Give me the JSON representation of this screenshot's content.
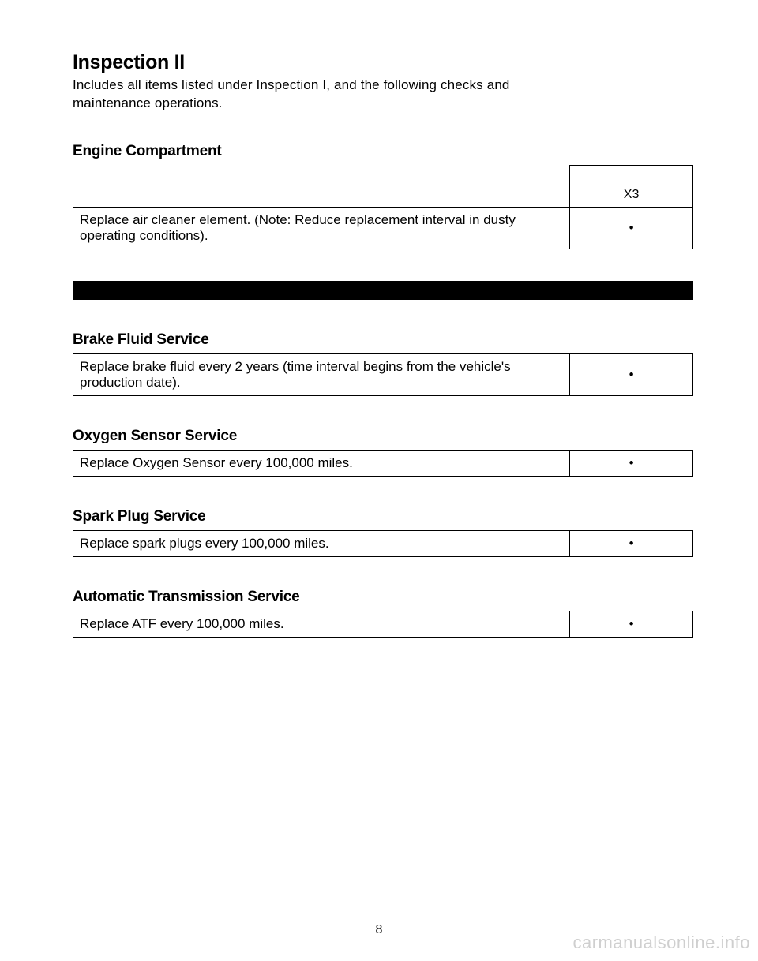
{
  "title": "Inspection II",
  "intro": "Includes all items listed under Inspection I, and the following checks and maintenance operations.",
  "column_header": "X3",
  "sections": {
    "engine": {
      "heading": "Engine Compartment",
      "item": "Replace air cleaner element. (Note: Reduce replacement interval in dusty operating conditions).",
      "mark": "•"
    },
    "brake": {
      "heading": "Brake Fluid Service",
      "item": "Replace brake fluid every 2 years (time interval begins from the vehicle's production date).",
      "mark": "•"
    },
    "oxygen": {
      "heading": "Oxygen Sensor Service",
      "item": "Replace Oxygen Sensor every 100,000 miles.",
      "mark": "•"
    },
    "spark": {
      "heading": "Spark Plug Service",
      "item": "Replace spark plugs every 100,000 miles.",
      "mark": "•"
    },
    "transmission": {
      "heading": "Automatic Transmission Service",
      "item": "Replace ATF every 100,000 miles.",
      "mark": "•"
    }
  },
  "page_number": "8",
  "watermark": "carmanualsonline.info"
}
